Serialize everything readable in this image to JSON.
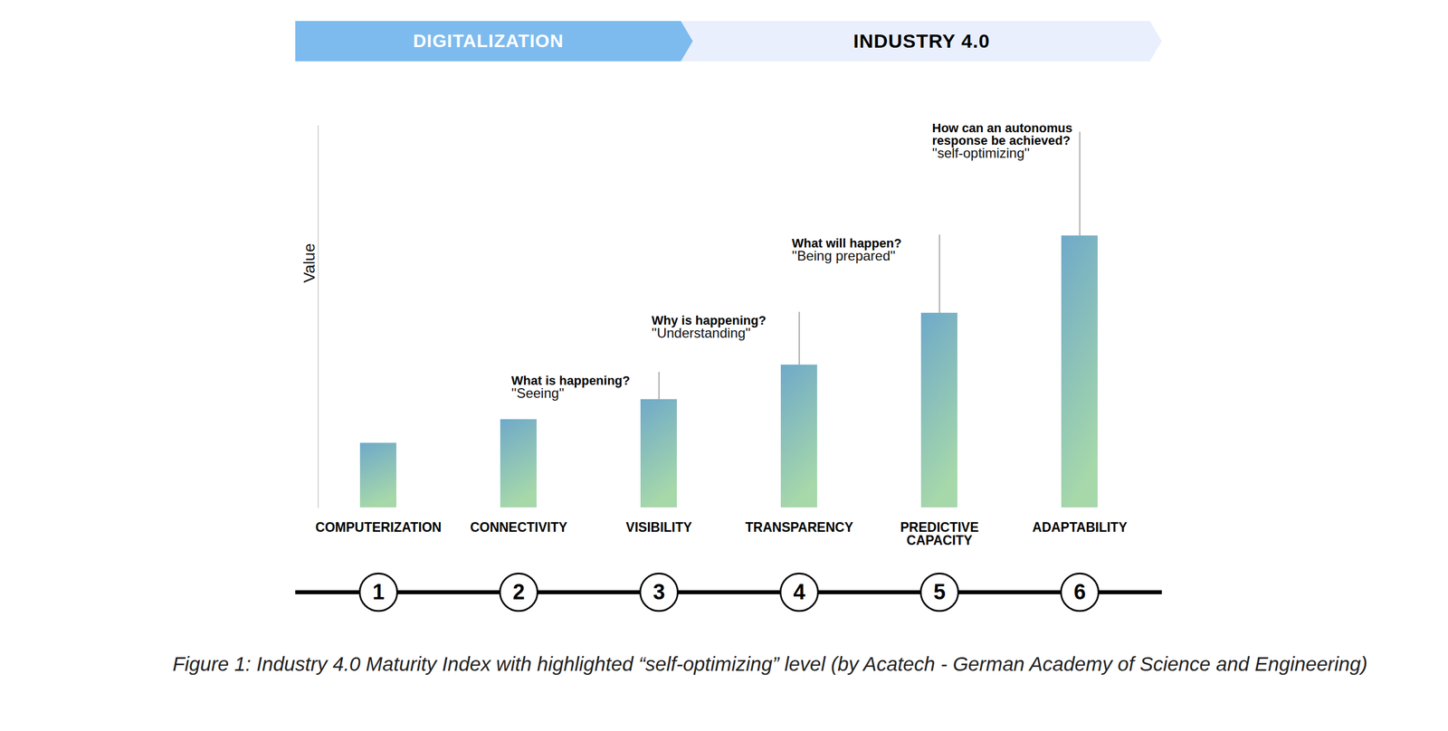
{
  "chart_data": {
    "type": "bar",
    "phases": [
      "DIGITALIZATION",
      "INDUSTRY 4.0"
    ],
    "ylabel": "Value",
    "categories": [
      "COMPUTERIZATION",
      "CONNECTIVITY",
      "VISIBILITY",
      "TRANSPARENCY",
      "PREDICTIVE CAPACITY",
      "ADAPTABILITY"
    ],
    "values": [
      71,
      97,
      119,
      157,
      214,
      299
    ],
    "color": "#6fa9c9",
    "ylim": [
      0,
      420
    ],
    "tick_labels": "x",
    "annotations": [
      {
        "category": "VISIBILITY",
        "question": "What is happening?",
        "quote": "''Seeing''"
      },
      {
        "category": "TRANSPARENCY",
        "question": "Why is happening?",
        "quote": "''Understanding''"
      },
      {
        "category": "PREDICTIVE CAPACITY",
        "question": "What will happen?",
        "quote": "''Being prepared''"
      },
      {
        "category": "ADAPTABILITY",
        "question": "How can an autonomus response be achieved?",
        "quote": "''self-optimizing''"
      }
    ],
    "step_numbers": [
      1,
      2,
      3,
      4,
      5,
      6
    ],
    "caption": "Figure 1: Industry 4.0 Maturity Index with highlighted “self-optimizing” level (by Acatech - German Academy of Science and Engineering)"
  }
}
